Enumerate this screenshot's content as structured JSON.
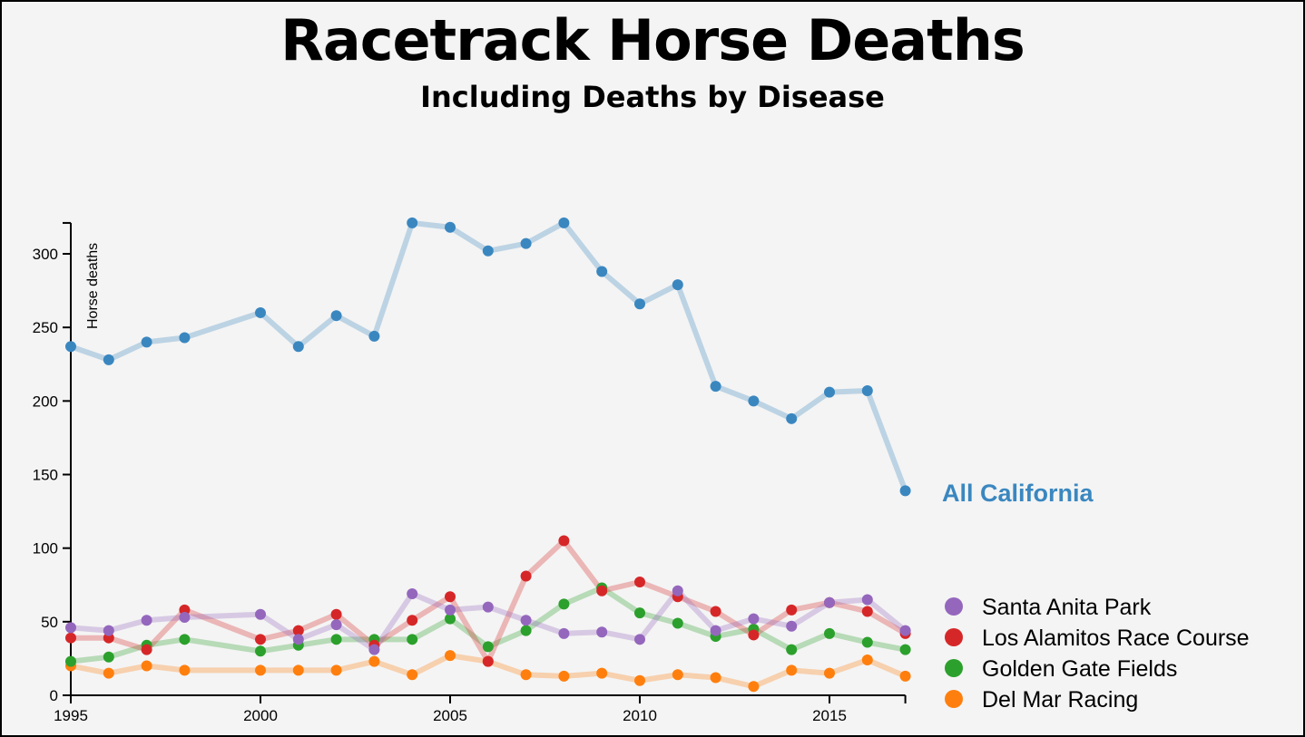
{
  "chart_data": {
    "type": "line",
    "title": "Racetrack Horse Deaths",
    "subtitle": "Including Deaths by Disease",
    "ylabel": "Horse deaths",
    "xlabel": "",
    "ylim": [
      0,
      321
    ],
    "xlim": [
      1995,
      2017
    ],
    "x_ticks": [
      "1995",
      "2000",
      "2005",
      "2010",
      "2015"
    ],
    "y_ticks": [
      "0",
      "50",
      "100",
      "150",
      "200",
      "250",
      "300"
    ],
    "grid": false,
    "legend_position": "bottom-right",
    "x": [
      1995,
      1996,
      1997,
      1998,
      2000,
      2001,
      2002,
      2003,
      2004,
      2005,
      2006,
      2007,
      2008,
      2009,
      2010,
      2011,
      2012,
      2013,
      2014,
      2015,
      2016,
      2017
    ],
    "series": [
      {
        "name": "All California",
        "color": "#3a87c0",
        "values": [
          237,
          228,
          240,
          243,
          260,
          237,
          258,
          244,
          321,
          318,
          302,
          307,
          321,
          288,
          266,
          279,
          210,
          200,
          188,
          206,
          207,
          139
        ]
      },
      {
        "name": "Santa Anita Park",
        "color": "#9467bd",
        "values": [
          46,
          44,
          51,
          53,
          55,
          38,
          48,
          31,
          69,
          58,
          60,
          51,
          42,
          43,
          38,
          71,
          44,
          52,
          47,
          63,
          65,
          44
        ]
      },
      {
        "name": "Los Alamitos Race Course",
        "color": "#d62728",
        "values": [
          39,
          39,
          31,
          58,
          38,
          44,
          55,
          34,
          51,
          67,
          23,
          81,
          105,
          71,
          77,
          67,
          57,
          41,
          58,
          63,
          57,
          42
        ]
      },
      {
        "name": "Golden Gate Fields",
        "color": "#2ca02c",
        "values": [
          23,
          26,
          34,
          38,
          30,
          34,
          38,
          38,
          38,
          52,
          33,
          44,
          62,
          73,
          56,
          49,
          40,
          45,
          31,
          42,
          36,
          31
        ]
      },
      {
        "name": "Del Mar Racing",
        "color": "#ff7f0e",
        "values": [
          20,
          15,
          20,
          17,
          17,
          17,
          17,
          23,
          14,
          27,
          23,
          14,
          13,
          15,
          10,
          14,
          12,
          6,
          17,
          15,
          24,
          13
        ]
      }
    ]
  }
}
